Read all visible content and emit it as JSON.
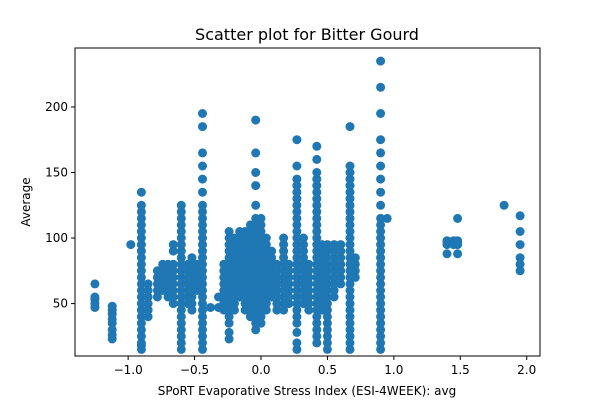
{
  "chart_data": {
    "type": "scatter",
    "title": "Scatter plot for Bitter Gourd",
    "xlabel": "SPoRT Evaporative Stress Index (ESI-4WEEK): avg",
    "ylabel": "Average",
    "xlim": [
      -1.4,
      2.1
    ],
    "ylim": [
      10,
      245
    ],
    "xticks": [
      -1.0,
      -0.5,
      0.0,
      0.5,
      1.0,
      1.5,
      2.0
    ],
    "xtick_labels": [
      "−1.0",
      "−0.5",
      "0.0",
      "0.5",
      "1.0",
      "1.5",
      "2.0"
    ],
    "yticks": [
      50,
      100,
      150,
      200
    ],
    "ytick_labels": [
      "50",
      "100",
      "150",
      "200"
    ],
    "grid": false,
    "marker_color": "#1f77b4",
    "columns": [
      {
        "x": -1.25,
        "y": [
          47,
          50,
          53,
          55,
          65
        ]
      },
      {
        "x": -1.12,
        "y": [
          23,
          26,
          30,
          35,
          38,
          42,
          45,
          48
        ]
      },
      {
        "x": -0.98,
        "y": [
          95
        ]
      },
      {
        "x": -0.9,
        "y": [
          15,
          18,
          20,
          25,
          30,
          35,
          40,
          45,
          50,
          55,
          60,
          65,
          70,
          75,
          80,
          85,
          90,
          95,
          100,
          105,
          110,
          115,
          120,
          125,
          135
        ]
      },
      {
        "x": -0.85,
        "y": [
          40,
          45,
          50,
          55,
          60,
          65
        ]
      },
      {
        "x": -0.78,
        "y": [
          55,
          60,
          65,
          70,
          75
        ]
      },
      {
        "x": -0.74,
        "y": [
          60,
          65,
          70,
          75,
          80
        ]
      },
      {
        "x": -0.7,
        "y": [
          55,
          60,
          65,
          70,
          75,
          80
        ]
      },
      {
        "x": -0.66,
        "y": [
          50,
          55,
          60,
          65,
          70,
          75,
          80,
          90,
          95
        ]
      },
      {
        "x": -0.6,
        "y": [
          15,
          20,
          25,
          30,
          35,
          40,
          45,
          50,
          55,
          60,
          65,
          70,
          75,
          80,
          85,
          90,
          95,
          100,
          105,
          110,
          115,
          120,
          125
        ]
      },
      {
        "x": -0.55,
        "y": [
          50,
          55,
          60,
          65,
          70,
          75,
          80
        ]
      },
      {
        "x": -0.52,
        "y": [
          45,
          50,
          55,
          60,
          65,
          70,
          75,
          80,
          85
        ]
      },
      {
        "x": -0.48,
        "y": [
          60,
          65,
          70,
          75,
          80
        ]
      },
      {
        "x": -0.44,
        "y": [
          15,
          20,
          25,
          30,
          35,
          40,
          45,
          50,
          55,
          60,
          65,
          70,
          75,
          80,
          85,
          90,
          95,
          100,
          105,
          110,
          115,
          120,
          125,
          135,
          145,
          155,
          165,
          185,
          195
        ]
      },
      {
        "x": -0.38,
        "y": [
          47
        ]
      },
      {
        "x": -0.32,
        "y": [
          47,
          55
        ]
      },
      {
        "x": -0.28,
        "y": [
          45,
          50,
          55,
          60,
          65,
          70,
          75,
          80
        ]
      },
      {
        "x": -0.24,
        "y": [
          23,
          28,
          35,
          40,
          45,
          50,
          55,
          60,
          65,
          70,
          75,
          80,
          85,
          90,
          95,
          100,
          105
        ]
      },
      {
        "x": -0.2,
        "y": [
          45,
          50,
          55,
          60,
          65,
          70,
          75,
          80,
          85,
          90,
          95,
          100
        ]
      },
      {
        "x": -0.16,
        "y": [
          55,
          60,
          65,
          70,
          75,
          80,
          85,
          90,
          95,
          100,
          105
        ]
      },
      {
        "x": -0.12,
        "y": [
          45,
          50,
          55,
          60,
          65,
          70,
          75,
          80,
          85,
          90,
          95,
          100,
          105
        ]
      },
      {
        "x": -0.08,
        "y": [
          40,
          45,
          50,
          55,
          60,
          65,
          70,
          75,
          80,
          85,
          90,
          95,
          100,
          105,
          110
        ]
      },
      {
        "x": -0.04,
        "y": [
          30,
          35,
          40,
          45,
          50,
          55,
          60,
          65,
          70,
          75,
          80,
          85,
          90,
          95,
          100,
          105,
          110,
          115,
          125,
          140,
          150,
          165,
          190
        ]
      },
      {
        "x": 0.0,
        "y": [
          35,
          40,
          45,
          50,
          55,
          60,
          65,
          70,
          75,
          80,
          85,
          90,
          95,
          100,
          105,
          110,
          115
        ]
      },
      {
        "x": 0.04,
        "y": [
          45,
          50,
          55,
          60,
          65,
          70,
          75,
          80,
          85,
          90,
          95,
          100
        ]
      },
      {
        "x": 0.08,
        "y": [
          55,
          60,
          65,
          70,
          75,
          80,
          85,
          90
        ]
      },
      {
        "x": 0.12,
        "y": [
          45,
          50,
          55,
          60,
          65,
          70,
          75,
          80
        ]
      },
      {
        "x": 0.17,
        "y": [
          45,
          50,
          55,
          60,
          65,
          70,
          75,
          80,
          85,
          90,
          95,
          100
        ]
      },
      {
        "x": 0.21,
        "y": [
          50,
          55,
          60,
          65,
          70,
          75,
          80
        ]
      },
      {
        "x": 0.27,
        "y": [
          15,
          20,
          28,
          35,
          40,
          45,
          50,
          55,
          60,
          65,
          70,
          75,
          80,
          85,
          90,
          95,
          100,
          105,
          110,
          115,
          120,
          125,
          130,
          135,
          140,
          145,
          155,
          175
        ]
      },
      {
        "x": 0.32,
        "y": [
          50,
          55,
          60,
          65,
          70,
          75,
          80,
          85,
          90,
          95,
          100
        ]
      },
      {
        "x": 0.36,
        "y": [
          45,
          50,
          55,
          60,
          65,
          70,
          75,
          80
        ]
      },
      {
        "x": 0.42,
        "y": [
          20,
          25,
          30,
          35,
          40,
          45,
          50,
          55,
          60,
          65,
          70,
          75,
          80,
          85,
          90,
          95,
          100,
          105,
          110,
          115,
          120,
          125,
          130,
          135,
          140,
          145,
          150,
          160,
          170
        ]
      },
      {
        "x": 0.46,
        "y": [
          45,
          50,
          55,
          60,
          65,
          70,
          75,
          80,
          85,
          90,
          95
        ]
      },
      {
        "x": 0.5,
        "y": [
          15,
          20,
          25,
          30,
          35,
          40,
          45,
          50,
          55,
          60,
          65,
          70,
          75,
          80,
          85,
          90,
          95
        ]
      },
      {
        "x": 0.55,
        "y": [
          55,
          60,
          65,
          70,
          75,
          80,
          85,
          90,
          95
        ]
      },
      {
        "x": 0.6,
        "y": [
          65,
          70,
          75,
          80,
          85,
          90,
          95
        ]
      },
      {
        "x": 0.67,
        "y": [
          15,
          20,
          25,
          30,
          35,
          40,
          45,
          50,
          55,
          60,
          65,
          70,
          75,
          80,
          85,
          90,
          95,
          100,
          105,
          110,
          115,
          120,
          125,
          130,
          135,
          140,
          145,
          150,
          155,
          185
        ]
      },
      {
        "x": 0.71,
        "y": [
          70,
          75,
          80,
          85
        ]
      },
      {
        "x": 0.9,
        "y": [
          15,
          20,
          25,
          30,
          35,
          40,
          45,
          50,
          55,
          60,
          65,
          70,
          75,
          80,
          85,
          90,
          95,
          100,
          105,
          110,
          115,
          125,
          135,
          145,
          155,
          165,
          175,
          195,
          215,
          235
        ]
      },
      {
        "x": 0.95,
        "y": [
          115
        ]
      },
      {
        "x": 1.4,
        "y": [
          88,
          95,
          97,
          98
        ]
      },
      {
        "x": 1.45,
        "y": [
          95,
          97,
          98
        ]
      },
      {
        "x": 1.48,
        "y": [
          88,
          95,
          97,
          98,
          115
        ]
      },
      {
        "x": 1.83,
        "y": [
          125
        ]
      },
      {
        "x": 1.95,
        "y": [
          75,
          80,
          85,
          95,
          105,
          117
        ]
      }
    ]
  }
}
